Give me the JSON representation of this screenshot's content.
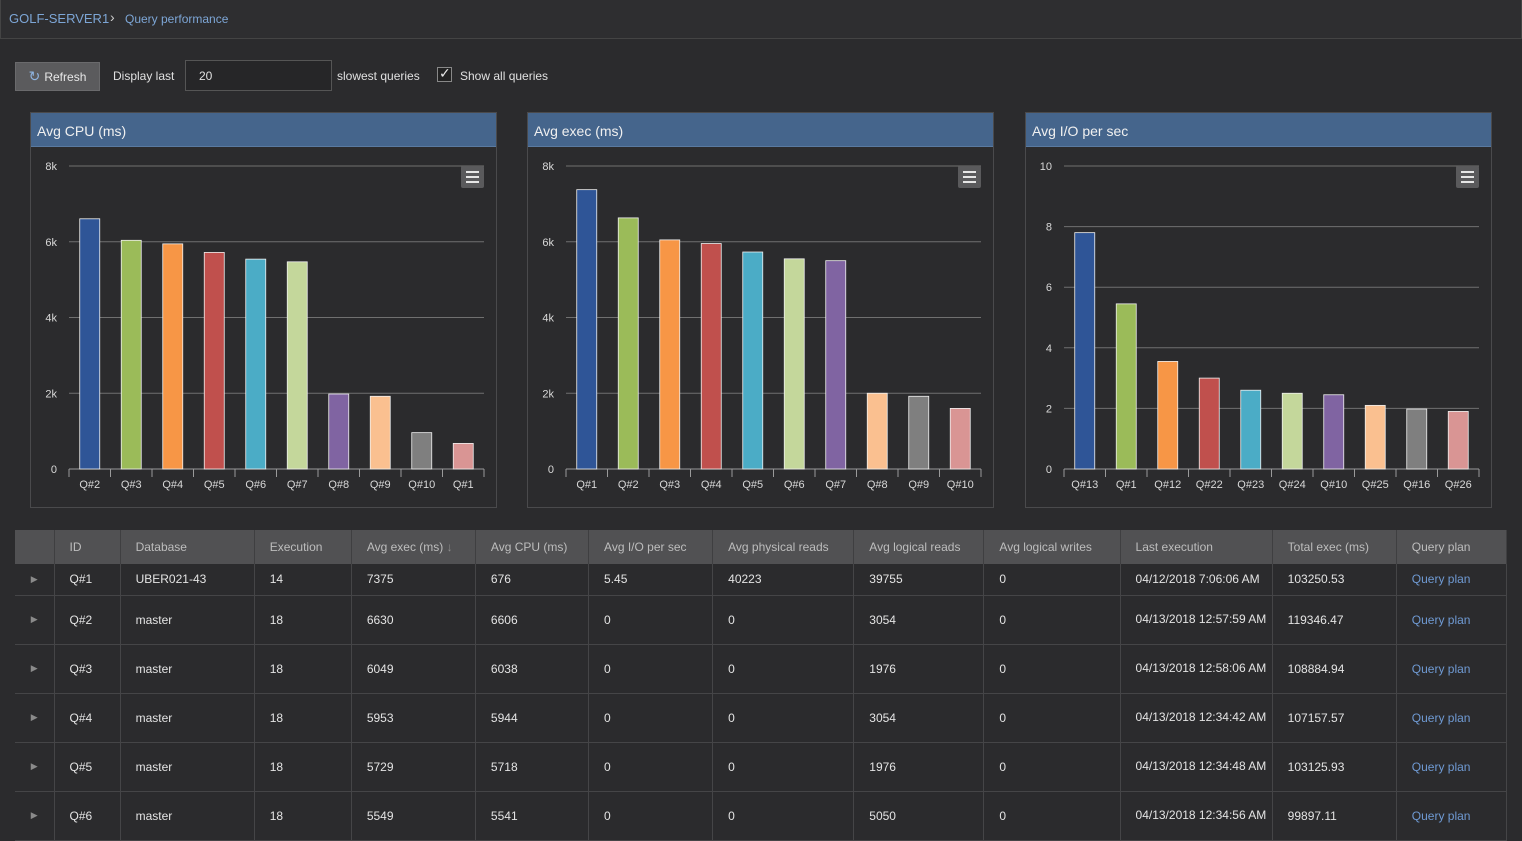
{
  "breadcrumb": {
    "server": "GOLF-SERVER1",
    "page": "Query performance"
  },
  "toolbar": {
    "refresh_label": "Refresh",
    "display_last_label": "Display last",
    "count_value": "20",
    "slowest_label": "slowest queries",
    "show_all_label": "Show all queries",
    "show_all_checked": true
  },
  "charts": [
    {
      "title": "Avg CPU (ms)"
    },
    {
      "title": "Avg exec (ms)"
    },
    {
      "title": "Avg I/O per sec"
    }
  ],
  "chart_data": [
    {
      "type": "bar",
      "title": "Avg CPU (ms)",
      "xlabel": "",
      "ylabel": "",
      "categories": [
        "Q#2",
        "Q#3",
        "Q#4",
        "Q#5",
        "Q#6",
        "Q#7",
        "Q#8",
        "Q#9",
        "Q#10",
        "Q#1"
      ],
      "values": [
        6606,
        6038,
        5944,
        5718,
        5541,
        5470,
        1980,
        1920,
        960,
        676
      ],
      "ylim": [
        0,
        8000
      ],
      "yticks": [
        "0",
        "2k",
        "4k",
        "6k",
        "8k"
      ],
      "colors": [
        "#2f5597",
        "#9bbb59",
        "#f79646",
        "#c0504d",
        "#4bacc6",
        "#c4d79b",
        "#8064a2",
        "#fac090",
        "#7f7f7f",
        "#d99594"
      ]
    },
    {
      "type": "bar",
      "title": "Avg exec (ms)",
      "xlabel": "",
      "ylabel": "",
      "categories": [
        "Q#1",
        "Q#2",
        "Q#3",
        "Q#4",
        "Q#5",
        "Q#6",
        "Q#7",
        "Q#8",
        "Q#9",
        "Q#10"
      ],
      "values": [
        7375,
        6630,
        6049,
        5953,
        5729,
        5549,
        5500,
        2000,
        1920,
        1600
      ],
      "ylim": [
        0,
        8000
      ],
      "yticks": [
        "0",
        "2k",
        "4k",
        "6k",
        "8k"
      ],
      "colors": [
        "#2f5597",
        "#9bbb59",
        "#f79646",
        "#c0504d",
        "#4bacc6",
        "#c4d79b",
        "#8064a2",
        "#fac090",
        "#7f7f7f",
        "#d99594"
      ]
    },
    {
      "type": "bar",
      "title": "Avg I/O per sec",
      "xlabel": "",
      "ylabel": "",
      "categories": [
        "Q#13",
        "Q#1",
        "Q#12",
        "Q#22",
        "Q#23",
        "Q#24",
        "Q#10",
        "Q#25",
        "Q#16",
        "Q#26"
      ],
      "values": [
        7.8,
        5.45,
        3.55,
        3.0,
        2.6,
        2.5,
        2.45,
        2.1,
        1.98,
        1.9
      ],
      "ylim": [
        0,
        10
      ],
      "yticks": [
        "0",
        "2",
        "4",
        "6",
        "8",
        "10"
      ],
      "colors": [
        "#2f5597",
        "#9bbb59",
        "#f79646",
        "#c0504d",
        "#4bacc6",
        "#c4d79b",
        "#8064a2",
        "#fac090",
        "#7f7f7f",
        "#d99594"
      ]
    }
  ],
  "table": {
    "columns": [
      "",
      "ID",
      "Database",
      "Execution",
      "Avg exec (ms)",
      "Avg CPU (ms)",
      "Avg I/O per sec",
      "Avg physical reads",
      "Avg logical reads",
      "Avg logical writes",
      "Last execution",
      "Total exec (ms)",
      "Query plan"
    ],
    "sort_icon": "arrow-down-icon",
    "rows": [
      [
        "Q#1",
        "UBER021-43",
        "14",
        "7375",
        "676",
        "5.45",
        "40223",
        "39755",
        "0",
        "04/12/2018 7:06:06 AM",
        "103250.53",
        "Query plan"
      ],
      [
        "Q#2",
        "master",
        "18",
        "6630",
        "6606",
        "0",
        "0",
        "3054",
        "0",
        "04/13/2018 12:57:59 AM",
        "119346.47",
        "Query plan"
      ],
      [
        "Q#3",
        "master",
        "18",
        "6049",
        "6038",
        "0",
        "0",
        "1976",
        "0",
        "04/13/2018 12:58:06 AM",
        "108884.94",
        "Query plan"
      ],
      [
        "Q#4",
        "master",
        "18",
        "5953",
        "5944",
        "0",
        "0",
        "3054",
        "0",
        "04/13/2018 12:34:42 AM",
        "107157.57",
        "Query plan"
      ],
      [
        "Q#5",
        "master",
        "18",
        "5729",
        "5718",
        "0",
        "0",
        "1976",
        "0",
        "04/13/2018 12:34:48 AM",
        "103125.93",
        "Query plan"
      ],
      [
        "Q#6",
        "master",
        "18",
        "5549",
        "5541",
        "0",
        "0",
        "5050",
        "0",
        "04/13/2018 12:34:56 AM",
        "99897.11",
        "Query plan"
      ]
    ]
  }
}
